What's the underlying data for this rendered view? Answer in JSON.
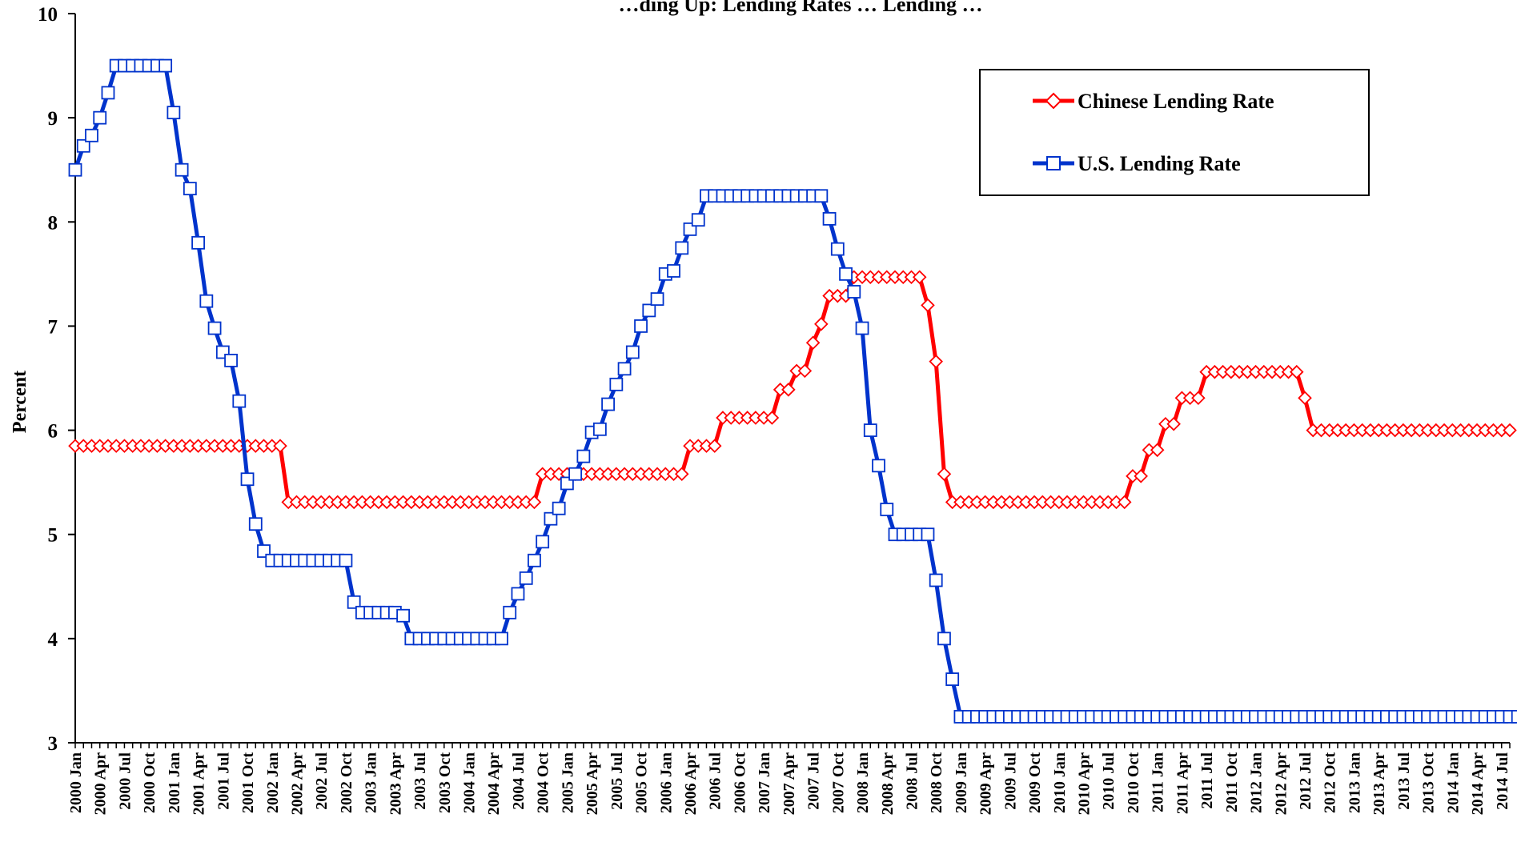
{
  "chart_data": {
    "type": "line",
    "title": "…ding Up: Lending Rates … Lending …",
    "xlabel": "",
    "ylabel": "Percent",
    "ylim": [
      3,
      10
    ],
    "y_ticks": [
      "3",
      "4",
      "5",
      "6",
      "7",
      "8",
      "9",
      "10"
    ],
    "x_start": "2000 Jan",
    "x_end": "2014 Jul",
    "x_tick_labels": [
      "2000 Jan",
      "2000 Apr",
      "2000 Jul",
      "2000 Oct",
      "2001 Jan",
      "2001 Apr",
      "2001 Jul",
      "2001 Oct",
      "2002 Jan",
      "2002 Apr",
      "2002 Jul",
      "2002 Oct",
      "2003 Jan",
      "2003 Apr",
      "2003 Jul",
      "2003 Oct",
      "2004 Jan",
      "2004 Apr",
      "2004 Jul",
      "2004 Oct",
      "2005 Jan",
      "2005 Apr",
      "2005 Jul",
      "2005 Oct",
      "2006 Jan",
      "2006 Apr",
      "2006 Jul",
      "2006 Oct",
      "2007 Jan",
      "2007 Apr",
      "2007 Jul",
      "2007 Oct",
      "2008 Jan",
      "2008 Apr",
      "2008 Jul",
      "2008 Oct",
      "2009 Jan",
      "2009 Apr",
      "2009 Jul",
      "2009 Oct",
      "2010 Jan",
      "2010 Apr",
      "2010 Jul",
      "2010 Oct",
      "2011 Jan",
      "2011 Apr",
      "2011 Jul",
      "2011 Oct",
      "2012 Jan",
      "2012 Apr",
      "2012 Jul",
      "2012 Oct",
      "2013 Jan",
      "2013 Apr",
      "2013 Jul",
      "2013 Oct",
      "2014 Jan",
      "2014 Apr",
      "2014 Jul"
    ],
    "grid": false,
    "legend": {
      "placement": "top-right"
    },
    "series": [
      {
        "name": "Chinese Lending Rate",
        "color": "#ff0000",
        "marker": "diamond",
        "values": [
          5.85,
          5.85,
          5.85,
          5.85,
          5.85,
          5.85,
          5.85,
          5.85,
          5.85,
          5.85,
          5.85,
          5.85,
          5.85,
          5.85,
          5.85,
          5.85,
          5.85,
          5.85,
          5.85,
          5.85,
          5.85,
          5.85,
          5.85,
          5.85,
          5.85,
          5.85,
          5.31,
          5.31,
          5.31,
          5.31,
          5.31,
          5.31,
          5.31,
          5.31,
          5.31,
          5.31,
          5.31,
          5.31,
          5.31,
          5.31,
          5.31,
          5.31,
          5.31,
          5.31,
          5.31,
          5.31,
          5.31,
          5.31,
          5.31,
          5.31,
          5.31,
          5.31,
          5.31,
          5.31,
          5.31,
          5.31,
          5.31,
          5.58,
          5.58,
          5.58,
          5.58,
          5.58,
          5.58,
          5.58,
          5.58,
          5.58,
          5.58,
          5.58,
          5.58,
          5.58,
          5.58,
          5.58,
          5.58,
          5.58,
          5.58,
          5.85,
          5.85,
          5.85,
          5.85,
          6.12,
          6.12,
          6.12,
          6.12,
          6.12,
          6.12,
          6.12,
          6.39,
          6.39,
          6.57,
          6.57,
          6.84,
          7.02,
          7.29,
          7.29,
          7.29,
          7.47,
          7.47,
          7.47,
          7.47,
          7.47,
          7.47,
          7.47,
          7.47,
          7.47,
          7.2,
          6.66,
          5.58,
          5.31,
          5.31,
          5.31,
          5.31,
          5.31,
          5.31,
          5.31,
          5.31,
          5.31,
          5.31,
          5.31,
          5.31,
          5.31,
          5.31,
          5.31,
          5.31,
          5.31,
          5.31,
          5.31,
          5.31,
          5.31,
          5.31,
          5.56,
          5.56,
          5.81,
          5.81,
          6.06,
          6.06,
          6.31,
          6.31,
          6.31,
          6.56,
          6.56,
          6.56,
          6.56,
          6.56,
          6.56,
          6.56,
          6.56,
          6.56,
          6.56,
          6.56,
          6.56,
          6.31,
          6.0,
          6.0,
          6.0,
          6.0,
          6.0,
          6.0,
          6.0,
          6.0,
          6.0,
          6.0,
          6.0,
          6.0,
          6.0,
          6.0,
          6.0,
          6.0,
          6.0,
          6.0,
          6.0,
          6.0,
          6.0,
          6.0,
          6.0,
          6.0,
          6.0
        ]
      },
      {
        "name": "U.S. Lending Rate",
        "color": "#0033cc",
        "marker": "square",
        "values": [
          8.5,
          8.73,
          8.83,
          9.0,
          9.24,
          9.5,
          9.5,
          9.5,
          9.5,
          9.5,
          9.5,
          9.5,
          9.05,
          8.5,
          8.32,
          7.8,
          7.24,
          6.98,
          6.75,
          6.67,
          6.28,
          5.53,
          5.1,
          4.84,
          4.75,
          4.75,
          4.75,
          4.75,
          4.75,
          4.75,
          4.75,
          4.75,
          4.75,
          4.75,
          4.35,
          4.25,
          4.25,
          4.25,
          4.25,
          4.25,
          4.22,
          4.0,
          4.0,
          4.0,
          4.0,
          4.0,
          4.0,
          4.0,
          4.0,
          4.0,
          4.0,
          4.0,
          4.0,
          4.25,
          4.43,
          4.58,
          4.75,
          4.93,
          5.15,
          5.25,
          5.49,
          5.58,
          5.75,
          5.98,
          6.01,
          6.25,
          6.44,
          6.59,
          6.75,
          7.0,
          7.15,
          7.26,
          7.5,
          7.53,
          7.75,
          7.93,
          8.02,
          8.25,
          8.25,
          8.25,
          8.25,
          8.25,
          8.25,
          8.25,
          8.25,
          8.25,
          8.25,
          8.25,
          8.25,
          8.25,
          8.25,
          8.25,
          8.03,
          7.74,
          7.5,
          7.33,
          6.98,
          6.0,
          5.66,
          5.24,
          5.0,
          5.0,
          5.0,
          5.0,
          5.0,
          4.56,
          4.0,
          3.61,
          3.25,
          3.25,
          3.25,
          3.25,
          3.25,
          3.25,
          3.25,
          3.25,
          3.25,
          3.25,
          3.25,
          3.25,
          3.25,
          3.25,
          3.25,
          3.25,
          3.25,
          3.25,
          3.25,
          3.25,
          3.25,
          3.25,
          3.25,
          3.25,
          3.25,
          3.25,
          3.25,
          3.25,
          3.25,
          3.25,
          3.25,
          3.25,
          3.25,
          3.25,
          3.25,
          3.25,
          3.25,
          3.25,
          3.25,
          3.25,
          3.25,
          3.25,
          3.25,
          3.25,
          3.25,
          3.25,
          3.25,
          3.25,
          3.25,
          3.25,
          3.25,
          3.25,
          3.25,
          3.25,
          3.25,
          3.25,
          3.25,
          3.25,
          3.25,
          3.25,
          3.25,
          3.25,
          3.25,
          3.25,
          3.25,
          3.25,
          3.25,
          3.25,
          3.25,
          3.25,
          3.25
        ]
      }
    ]
  }
}
